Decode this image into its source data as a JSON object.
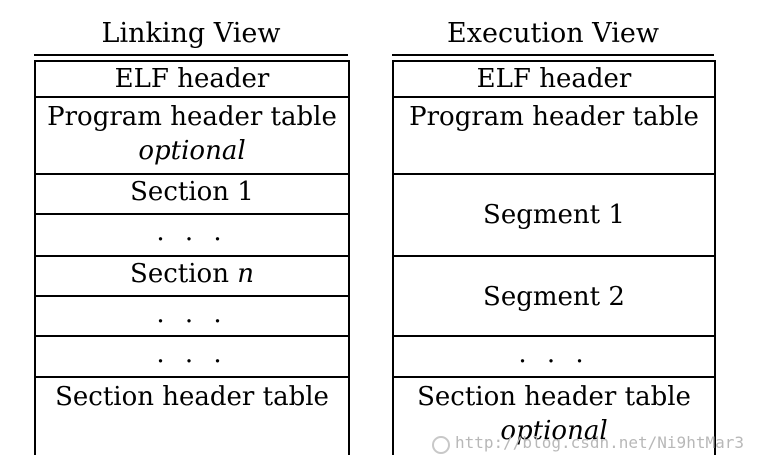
{
  "linking_view": {
    "title": "Linking View",
    "rows": [
      {
        "label": "ELF header"
      },
      {
        "label": "Program header table",
        "sublabel": "optional"
      },
      {
        "label": "Section 1"
      },
      {
        "label": ". . ."
      },
      {
        "label_prefix": "Section ",
        "label_var": "n"
      },
      {
        "label": ". . ."
      },
      {
        "label": ". . ."
      },
      {
        "label": "Section header table"
      }
    ]
  },
  "execution_view": {
    "title": "Execution View",
    "rows": [
      {
        "label": "ELF header"
      },
      {
        "label": "Program header table"
      },
      {
        "label": "Segment 1"
      },
      {
        "label": "Segment 2"
      },
      {
        "label": ". . ."
      },
      {
        "label": "Section header table",
        "sublabel": "optional"
      }
    ]
  },
  "watermark": {
    "text": "http://blog.csdn.net/Ni9htMar3"
  }
}
